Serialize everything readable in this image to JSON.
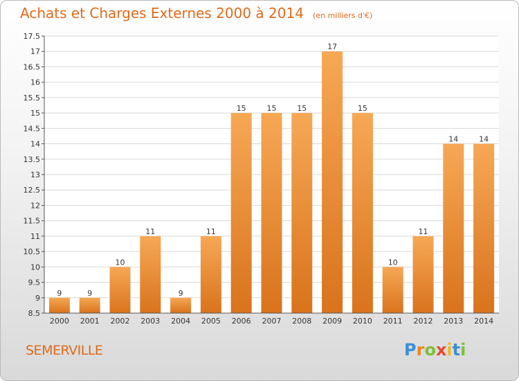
{
  "header": {
    "title": "Achats et Charges Externes 2000 à 2014",
    "subtitle": "(en milliers d'€)"
  },
  "commune": "SEMERVILLE",
  "logo": {
    "letters": [
      "P",
      "r",
      "o",
      "x",
      "i",
      "t",
      "i"
    ],
    "colors": [
      "#3a8fd8",
      "#e8881e",
      "#7fbf3a",
      "#e24a32",
      "#f2b722",
      "#3a8fd8",
      "#7fbf3a"
    ]
  },
  "chart_data": {
    "type": "bar",
    "categories": [
      "2000",
      "2001",
      "2002",
      "2003",
      "2004",
      "2005",
      "2006",
      "2007",
      "2008",
      "2009",
      "2010",
      "2011",
      "2012",
      "2013",
      "2014"
    ],
    "values": [
      9,
      9,
      10,
      11,
      9,
      11,
      15,
      15,
      15,
      17,
      15,
      10,
      11,
      14,
      14
    ],
    "value_labels": [
      "9",
      "9",
      "10",
      "11",
      "9",
      "11",
      "15",
      "15",
      "15",
      "17",
      "15",
      "10",
      "11",
      "14",
      "14"
    ],
    "ylim": [
      8.5,
      17.5
    ],
    "yticks": [
      8.5,
      9,
      9.5,
      10,
      10.5,
      11,
      11.5,
      12,
      12.5,
      13,
      13.5,
      14,
      14.5,
      15,
      15.5,
      16,
      16.5,
      17,
      17.5
    ],
    "ytick_labels": [
      "8.5",
      "9",
      "9.5",
      "10",
      "10.5",
      "11",
      "11.5",
      "12",
      "12.5",
      "13",
      "13.5",
      "14",
      "14.5",
      "15",
      "15.5",
      "16",
      "16.5",
      "17",
      "17.5"
    ],
    "grid": true,
    "bar_color_light": "#f6a855",
    "bar_color_dark": "#d9731c",
    "grid_color": "#d8d8d8"
  }
}
